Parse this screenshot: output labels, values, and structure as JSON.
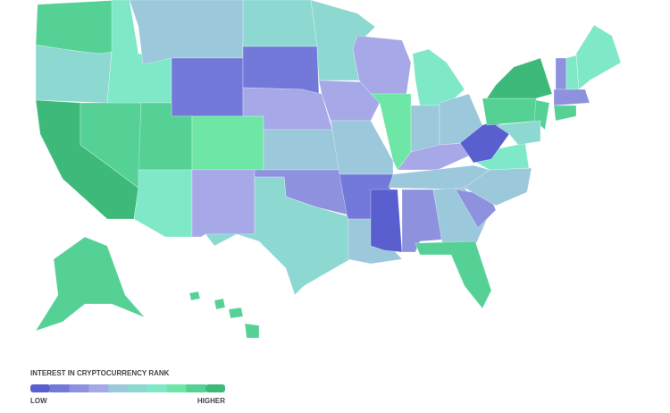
{
  "legend": {
    "title": "INTEREST IN CRYPTOCURRENCY RANK",
    "low_label": "LOW",
    "high_label": "HIGHER",
    "colors": [
      "#5a5fd0",
      "#7379d8",
      "#8e92de",
      "#a6a8e8",
      "#9cc8dc",
      "#8ed8d2",
      "#7fe8c8",
      "#6de6a6",
      "#55d196",
      "#3dba7a"
    ]
  },
  "region_colors": [
    "#55d196",
    "#8ed8d2",
    "#3dba7a",
    "#55d196",
    "#7fe8c8",
    "#9cc8dc",
    "#7379d8",
    "#55d196",
    "#6de6a6",
    "#7fe8c8",
    "#a6a8e8",
    "#8ed8d2",
    "#7379d8",
    "#a6a8e8",
    "#9cc8dc",
    "#8e92de",
    "#8ed8d2",
    "#8ed8d2",
    "#a6a8e8",
    "#9cc8dc",
    "#7379d8",
    "#9cc8dc",
    "#a6a8e8",
    "#6de6a6",
    "#7fe8c8",
    "#9cc8dc",
    "#9cc8dc",
    "#a6a8e8",
    "#9cc8dc",
    "#5a5fd0",
    "#8e92de",
    "#9cc8dc",
    "#55d196",
    "#8e92de",
    "#9cc8dc",
    "#7fe8c8",
    "#5a5fd0",
    "#55d196",
    "#3dba7a",
    "#55d196",
    "#8ed8d2",
    "#8e92de",
    "#7fe8c8",
    "#7fe8c8",
    "#8e92de",
    "#55d196",
    "#55d196",
    "#55d196",
    "#55d196",
    "#55d196",
    "#55d196"
  ]
}
